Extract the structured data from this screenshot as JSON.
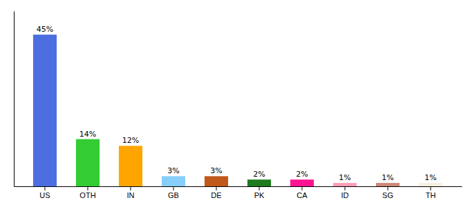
{
  "chart_data": {
    "type": "bar",
    "categories": [
      "US",
      "OTH",
      "IN",
      "GB",
      "DE",
      "PK",
      "CA",
      "ID",
      "SG",
      "TH"
    ],
    "values": [
      45,
      14,
      12,
      3,
      3,
      2,
      2,
      1,
      1,
      1
    ],
    "value_labels": [
      "45%",
      "14%",
      "12%",
      "3%",
      "3%",
      "2%",
      "2%",
      "1%",
      "1%",
      "1%"
    ],
    "colors": [
      "#4C6EE0",
      "#33CC33",
      "#FFA500",
      "#87CEFA",
      "#C0591A",
      "#1E7B1E",
      "#FF1493",
      "#FF9EB5",
      "#CC8877",
      "#F5F0E0"
    ],
    "ylim": [
      0,
      52
    ],
    "data_labels": true,
    "tick_labels": "x"
  }
}
